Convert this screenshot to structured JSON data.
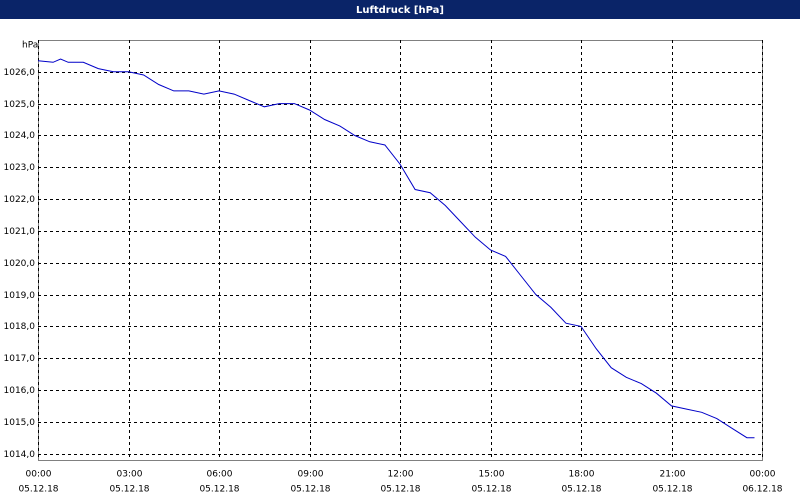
{
  "chart_data": {
    "type": "line",
    "title": "Luftdruck [hPa]",
    "y_label": "hPa",
    "x": [
      0,
      0.5,
      0.75,
      1,
      1.5,
      2,
      2.5,
      3,
      3.5,
      4,
      4.5,
      5,
      5.5,
      6,
      6.5,
      7,
      7.5,
      8,
      8.5,
      9,
      9.5,
      10,
      10.5,
      11,
      11.5,
      12,
      12.5,
      13,
      13.5,
      14,
      14.5,
      15,
      15.5,
      16,
      16.5,
      17,
      17.5,
      18,
      18.5,
      19,
      19.5,
      20,
      20.5,
      21,
      21.5,
      22,
      22.5,
      23,
      23.5,
      23.75
    ],
    "series": [
      {
        "name": "Luftdruck",
        "color": "#0000c8",
        "values": [
          1026.35,
          1026.3,
          1026.4,
          1026.3,
          1026.3,
          1026.1,
          1026.0,
          1026.0,
          1025.9,
          1025.6,
          1025.4,
          1025.4,
          1025.3,
          1025.4,
          1025.3,
          1025.1,
          1024.9,
          1025.0,
          1025.0,
          1024.8,
          1024.5,
          1024.3,
          1024.0,
          1023.8,
          1023.7,
          1023.1,
          1022.3,
          1022.2,
          1021.8,
          1021.3,
          1020.8,
          1020.4,
          1020.2,
          1019.6,
          1019.0,
          1018.6,
          1018.1,
          1018.0,
          1017.3,
          1016.7,
          1016.4,
          1016.2,
          1015.9,
          1015.5,
          1015.4,
          1015.3,
          1015.1,
          1014.8,
          1014.5,
          1014.5
        ]
      }
    ],
    "xlim": [
      0,
      24
    ],
    "xticks": [
      {
        "value": 0,
        "label": "00:00",
        "date": "05.12.18"
      },
      {
        "value": 3,
        "label": "03:00",
        "date": "05.12.18"
      },
      {
        "value": 6,
        "label": "06:00",
        "date": "05.12.18"
      },
      {
        "value": 9,
        "label": "09:00",
        "date": "05.12.18"
      },
      {
        "value": 12,
        "label": "12:00",
        "date": "05.12.18"
      },
      {
        "value": 15,
        "label": "15:00",
        "date": "05.12.18"
      },
      {
        "value": 18,
        "label": "18:00",
        "date": "05.12.18"
      },
      {
        "value": 21,
        "label": "21:00",
        "date": "05.12.18"
      },
      {
        "value": 24,
        "label": "00:00",
        "date": "06.12.18"
      }
    ],
    "ylim": [
      1013.8,
      1027.0
    ],
    "yticks": [
      {
        "value": 1014,
        "label": "1014,0"
      },
      {
        "value": 1015,
        "label": "1015,0"
      },
      {
        "value": 1016,
        "label": "1016,0"
      },
      {
        "value": 1017,
        "label": "1017,0"
      },
      {
        "value": 1018,
        "label": "1018,0"
      },
      {
        "value": 1019,
        "label": "1019,0"
      },
      {
        "value": 1020,
        "label": "1020,0"
      },
      {
        "value": 1021,
        "label": "1021,0"
      },
      {
        "value": 1022,
        "label": "1022,0"
      },
      {
        "value": 1023,
        "label": "1023,0"
      },
      {
        "value": 1024,
        "label": "1024,0"
      },
      {
        "value": 1025,
        "label": "1025,0"
      },
      {
        "value": 1026,
        "label": "1026,0"
      }
    ],
    "grid": true
  }
}
